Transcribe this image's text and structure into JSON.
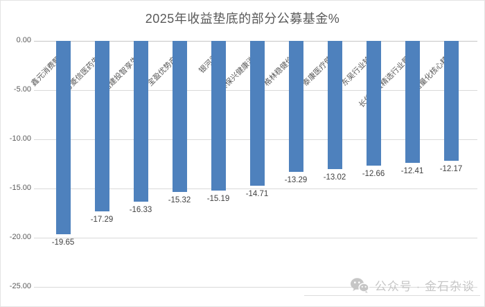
{
  "header": {
    "title": "2025年收益垫底的部分公募基金%"
  },
  "chart_data": {
    "type": "bar",
    "title": "2025年收益垫底的部分公募基金%",
    "categories": [
      "鑫元消费甄选A",
      "申万菱信医药先锋A",
      "中信建投智享生活A",
      "宝盈优势产业A",
      "银河君信I",
      "华泰保兴健康消费A",
      "格林稳健价值A",
      "泰康医疗健康A",
      "东吴行业轮动A",
      "长信消费精选行业量化A",
      "天治量化核心精选A"
    ],
    "values": [
      -19.65,
      -17.29,
      -16.33,
      -15.32,
      -15.19,
      -14.71,
      -13.29,
      -13.02,
      -12.66,
      -12.41,
      -12.17
    ],
    "ylabel": "",
    "xlabel": "",
    "ylim": [
      -25,
      0
    ],
    "ytick_labels": [
      "0.00",
      "-5.00",
      "-10.00",
      "-15.00",
      "-20.00",
      "-25.00"
    ],
    "grid": "horizontal",
    "legend": "none",
    "data_labels": true,
    "bar_color": "#4E81BD",
    "category_label_rotation_deg": 45
  },
  "footer": {
    "wechat_label": "公众号 · 金石杂谈",
    "icon": "wechat-icon"
  },
  "colors": {
    "bar": "#4E81BD",
    "grid": "#D9D9D9",
    "zero_line": "#C6C6C6",
    "axis_text": "#595959",
    "title_text": "#595959",
    "value_text": "#404040",
    "footer_text": "#C6C6C6"
  }
}
